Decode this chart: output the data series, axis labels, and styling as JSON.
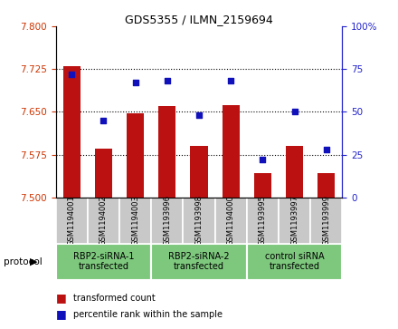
{
  "title": "GDS5355 / ILMN_2159694",
  "samples": [
    "GSM1194001",
    "GSM1194002",
    "GSM1194003",
    "GSM1193996",
    "GSM1193998",
    "GSM1194000",
    "GSM1193995",
    "GSM1193997",
    "GSM1193999"
  ],
  "red_values": [
    7.73,
    7.585,
    7.648,
    7.66,
    7.59,
    7.662,
    7.543,
    7.59,
    7.543
  ],
  "blue_values": [
    72,
    45,
    67,
    68,
    48,
    68,
    22,
    50,
    28
  ],
  "ylim_left": [
    7.5,
    7.8
  ],
  "ylim_right": [
    0,
    100
  ],
  "yticks_left": [
    7.5,
    7.575,
    7.65,
    7.725,
    7.8
  ],
  "yticks_right": [
    0,
    25,
    50,
    75,
    100
  ],
  "hlines": [
    7.575,
    7.65,
    7.725
  ],
  "protocols": [
    {
      "label": "RBP2-siRNA-1\ntransfected",
      "start": 0,
      "end": 3
    },
    {
      "label": "RBP2-siRNA-2\ntransfected",
      "start": 3,
      "end": 6
    },
    {
      "label": "control siRNA\ntransfected",
      "start": 6,
      "end": 9
    }
  ],
  "bar_color": "#BB1111",
  "dot_color": "#1111BB",
  "bar_bottom": 7.5,
  "left_tick_color": "#CC3300",
  "right_tick_color": "#2222CC",
  "legend_red": "transformed count",
  "legend_blue": "percentile rank within the sample",
  "protocol_label": "protocol",
  "proto_color": "#7EC87E",
  "sample_box_color": "#C8C8C8",
  "title_fontsize": 9,
  "tick_fontsize": 7.5,
  "sample_fontsize": 6,
  "proto_fontsize": 7,
  "legend_fontsize": 7
}
